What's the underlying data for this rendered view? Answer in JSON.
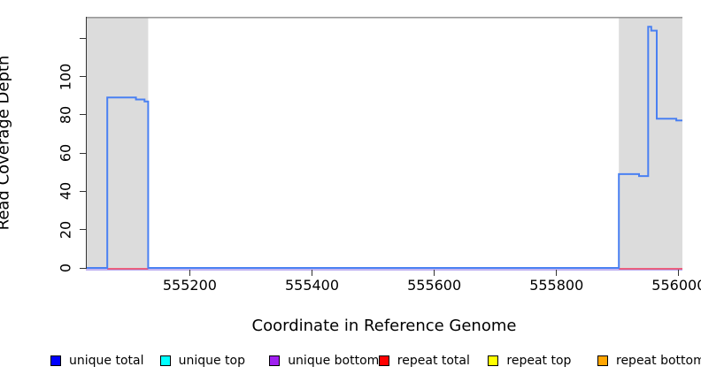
{
  "chart_data": {
    "type": "line",
    "title": "",
    "xlabel": "Coordinate in Reference Genome",
    "ylabel": "Read Coverage Depth",
    "xlim": [
      555030,
      556006
    ],
    "ylim": [
      0,
      131.2
    ],
    "grid": false,
    "x_ticks": [
      {
        "value": 555200,
        "label": "555200"
      },
      {
        "value": 555400,
        "label": "555400"
      },
      {
        "value": 555600,
        "label": "555600"
      },
      {
        "value": 555800,
        "label": "555800"
      },
      {
        "value": 556000,
        "label": "556000"
      }
    ],
    "y_ticks": [
      {
        "value": 0,
        "label": "0"
      },
      {
        "value": 20,
        "label": "20"
      },
      {
        "value": 40,
        "label": "40"
      },
      {
        "value": 60,
        "label": "60"
      },
      {
        "value": 80,
        "label": "80"
      },
      {
        "value": 100,
        "label": "100"
      },
      {
        "value": 120,
        "label": ""
      }
    ],
    "shaded_regions": [
      {
        "name": "left-gray-region",
        "x0": 555030,
        "x1": 555132,
        "color": "#dcdcdc"
      },
      {
        "name": "right-gray-region",
        "x0": 555902,
        "x1": 556006,
        "color": "#dcdcdc"
      }
    ],
    "top_reference_line": {
      "color": "#999999"
    },
    "series": [
      {
        "name": "unique total",
        "line_color": "#4a80f2",
        "points": [
          [
            555030,
            0
          ],
          [
            555065,
            0
          ],
          [
            555065,
            89
          ],
          [
            555112,
            89
          ],
          [
            555112,
            88
          ],
          [
            555126,
            88
          ],
          [
            555126,
            87
          ],
          [
            555132,
            87
          ],
          [
            555132,
            0
          ],
          [
            555902,
            0
          ],
          [
            555902,
            49
          ],
          [
            555935,
            49
          ],
          [
            555935,
            48
          ],
          [
            555950,
            48
          ],
          [
            555950,
            126
          ],
          [
            555955,
            126
          ],
          [
            555955,
            124
          ],
          [
            555964,
            124
          ],
          [
            555964,
            78
          ],
          [
            555996,
            78
          ],
          [
            555996,
            77
          ],
          [
            556006,
            77
          ]
        ]
      },
      {
        "name": "repeat total",
        "line_color": "#ee4a66",
        "value": 0,
        "segments": [
          [
            555065,
            555132
          ],
          [
            555902,
            556006
          ]
        ]
      },
      {
        "name": "unique bottom",
        "line_color": "#b3a1ee",
        "value": 0,
        "segments": [
          [
            555030,
            556006
          ]
        ]
      }
    ],
    "legend": {
      "position": "bottom",
      "items": [
        {
          "label": "unique total",
          "color": "#0000ff"
        },
        {
          "label": "unique top",
          "color": "#00ffff"
        },
        {
          "label": "unique bottom",
          "color": "#a020f0"
        },
        {
          "label": "repeat total",
          "color": "#ff0000"
        },
        {
          "label": "repeat top",
          "color": "#ffff00"
        },
        {
          "label": "repeat bottom",
          "color": "#ffa500"
        }
      ]
    }
  }
}
